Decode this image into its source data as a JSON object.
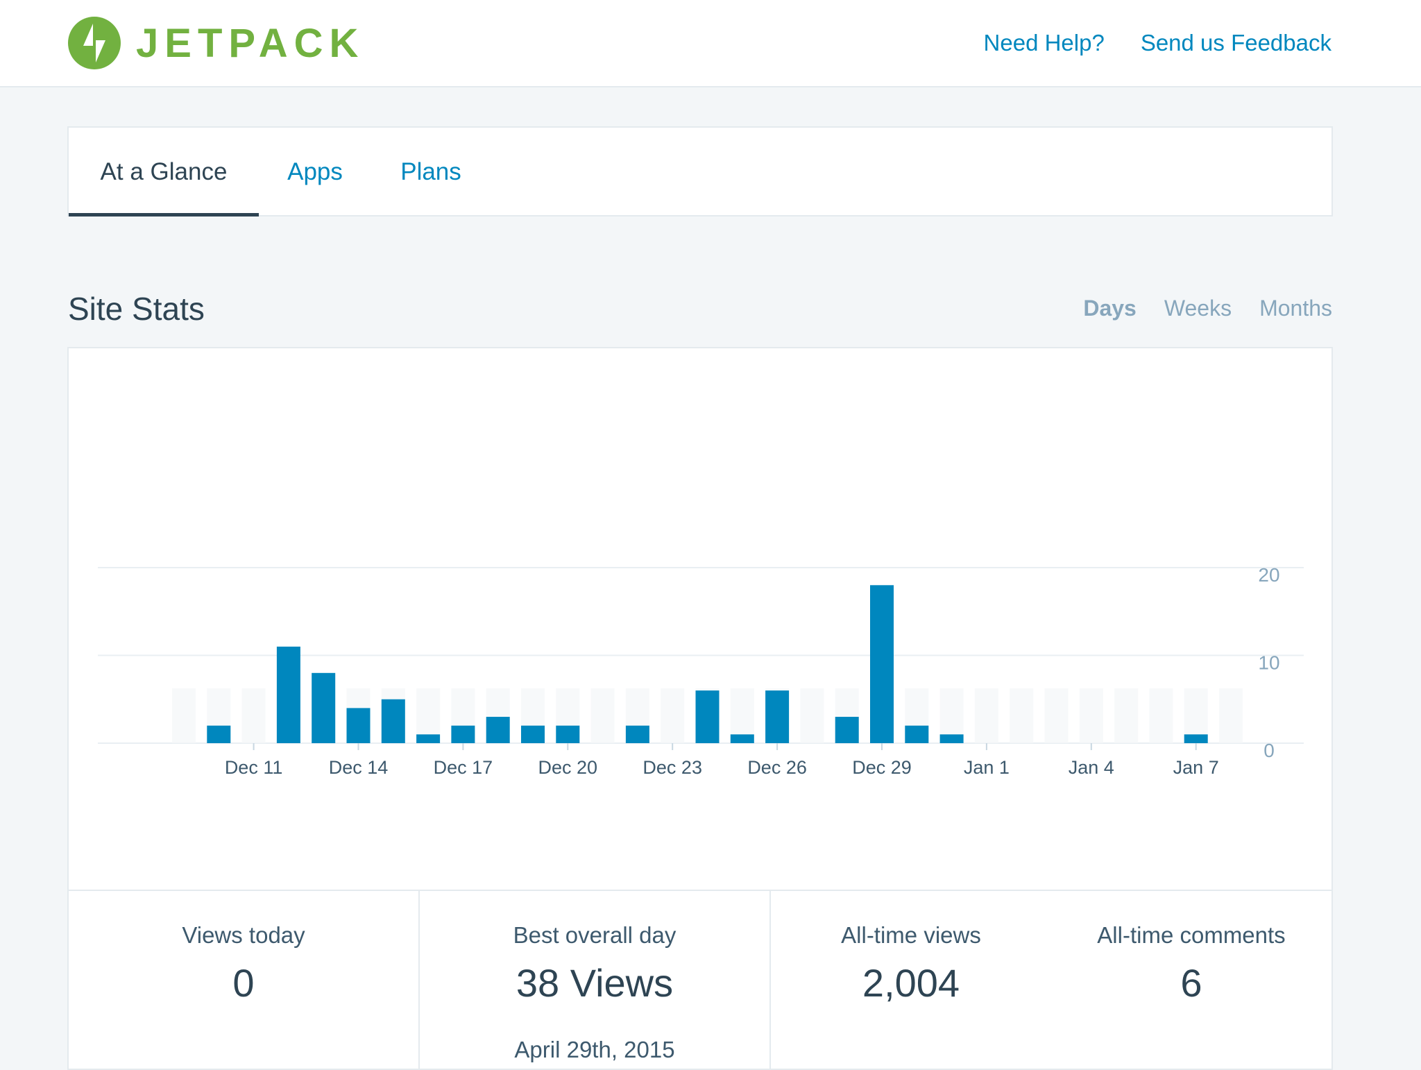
{
  "header": {
    "logo_text": "JETPACK",
    "need_help": "Need Help?",
    "feedback": "Send us Feedback"
  },
  "nav": {
    "tabs": [
      {
        "label": "At a Glance",
        "active": true
      },
      {
        "label": "Apps",
        "active": false
      },
      {
        "label": "Plans",
        "active": false
      }
    ]
  },
  "stats": {
    "title": "Site Stats",
    "periods": [
      {
        "label": "Days",
        "active": true
      },
      {
        "label": "Weeks",
        "active": false
      },
      {
        "label": "Months",
        "active": false
      }
    ]
  },
  "colors": {
    "brand": "#72b140",
    "link": "#0087be",
    "bar": "#0087be",
    "text": "#2e4453"
  },
  "chart_data": {
    "type": "bar",
    "categories": [
      "Dec 9",
      "Dec 10",
      "Dec 11",
      "Dec 12",
      "Dec 13",
      "Dec 14",
      "Dec 15",
      "Dec 16",
      "Dec 17",
      "Dec 18",
      "Dec 19",
      "Dec 20",
      "Dec 21",
      "Dec 22",
      "Dec 23",
      "Dec 24",
      "Dec 25",
      "Dec 26",
      "Dec 27",
      "Dec 28",
      "Dec 29",
      "Dec 30",
      "Dec 31",
      "Jan 1",
      "Jan 2",
      "Jan 3",
      "Jan 4",
      "Jan 5",
      "Jan 6",
      "Jan 7",
      "Jan 8"
    ],
    "values": [
      0,
      2,
      0,
      11,
      8,
      4,
      5,
      1,
      2,
      3,
      2,
      2,
      0,
      2,
      0,
      6,
      1,
      6,
      0,
      3,
      18,
      2,
      1,
      0,
      0,
      0,
      0,
      0,
      0,
      1,
      0
    ],
    "tick_labels": [
      "Dec 11",
      "Dec 14",
      "Dec 17",
      "Dec 20",
      "Dec 23",
      "Dec 26",
      "Dec 29",
      "Jan 1",
      "Jan 4",
      "Jan 7"
    ],
    "y_ticks": [
      0,
      10,
      20
    ],
    "ylim": [
      0,
      20
    ],
    "grid": true
  },
  "summary": {
    "views_today": {
      "label": "Views today",
      "value": "0"
    },
    "best_day": {
      "label": "Best overall day",
      "value": "38 Views",
      "date": "April 29th, 2015"
    },
    "all_time_views": {
      "label": "All-time views",
      "value": "2,004"
    },
    "all_time_comments": {
      "label": "All-time comments",
      "value": "6"
    }
  }
}
